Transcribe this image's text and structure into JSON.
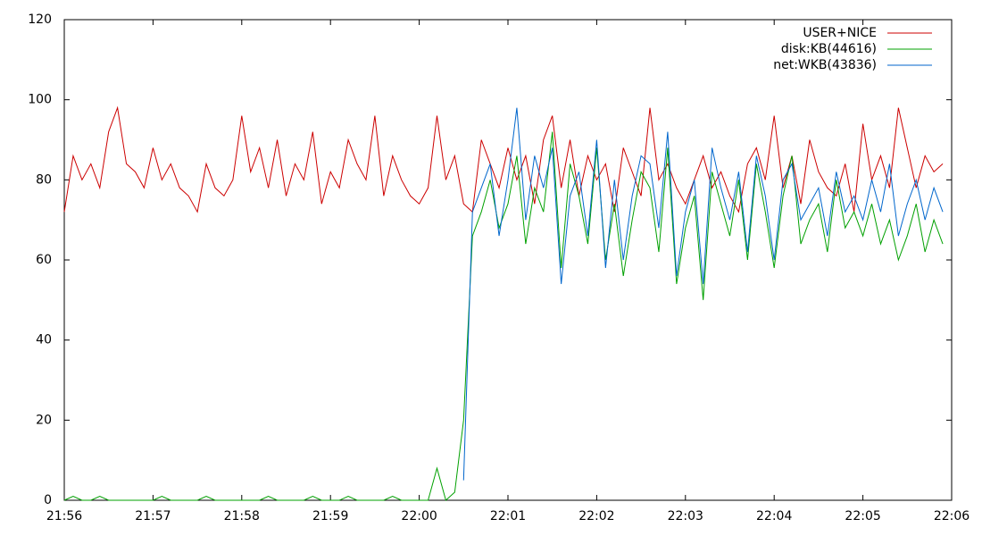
{
  "chart_data": {
    "type": "line",
    "x": [
      1316.0,
      1316.1,
      1316.2,
      1316.3,
      1316.4,
      1316.5,
      1316.6,
      1316.7,
      1316.8,
      1316.9,
      1317.0,
      1317.1,
      1317.2,
      1317.3,
      1317.4,
      1317.5,
      1317.6,
      1317.7,
      1317.8,
      1317.9,
      1318.0,
      1318.1,
      1318.2,
      1318.3,
      1318.4,
      1318.5,
      1318.6,
      1318.7,
      1318.8,
      1318.9,
      1319.0,
      1319.1,
      1319.2,
      1319.3,
      1319.4,
      1319.5,
      1319.6,
      1319.7,
      1319.8,
      1319.9,
      1320.0,
      1320.1,
      1320.2,
      1320.3,
      1320.4,
      1320.5,
      1320.6,
      1320.7,
      1320.8,
      1320.9,
      1321.0,
      1321.1,
      1321.2,
      1321.3,
      1321.4,
      1321.5,
      1321.6,
      1321.7,
      1321.8,
      1321.9,
      1322.0,
      1322.1,
      1322.2,
      1322.3,
      1322.4,
      1322.5,
      1322.6,
      1322.7,
      1322.8,
      1322.9,
      1323.0,
      1323.1,
      1323.2,
      1323.3,
      1323.4,
      1323.5,
      1323.6,
      1323.7,
      1323.8,
      1323.9,
      1324.0,
      1324.1,
      1324.2,
      1324.3,
      1324.4,
      1324.5,
      1324.6,
      1324.7,
      1324.8,
      1324.9,
      1325.0,
      1325.1,
      1325.2,
      1325.3,
      1325.4,
      1325.5,
      1325.6,
      1325.7,
      1325.8,
      1325.9
    ],
    "series": [
      {
        "name": "USER+NICE",
        "color": "#cc0000",
        "values": [
          72,
          86,
          80,
          84,
          78,
          92,
          98,
          84,
          82,
          78,
          88,
          80,
          84,
          78,
          76,
          72,
          84,
          78,
          76,
          80,
          96,
          82,
          88,
          78,
          90,
          76,
          84,
          80,
          92,
          74,
          82,
          78,
          90,
          84,
          80,
          96,
          76,
          86,
          80,
          76,
          74,
          78,
          96,
          80,
          86,
          74,
          72,
          90,
          84,
          78,
          88,
          80,
          86,
          74,
          90,
          96,
          78,
          90,
          76,
          86,
          80,
          84,
          72,
          88,
          82,
          76,
          98,
          80,
          84,
          78,
          74,
          80,
          86,
          78,
          82,
          76,
          72,
          84,
          88,
          80,
          96,
          78,
          86,
          74,
          90,
          82,
          78,
          76,
          84,
          72,
          94,
          80,
          86,
          78,
          98,
          88,
          78,
          86,
          82,
          84
        ]
      },
      {
        "name": "disk:KB(44616)",
        "color": "#00a000",
        "values": [
          0,
          1,
          0,
          0,
          1,
          0,
          0,
          0,
          0,
          0,
          0,
          1,
          0,
          0,
          0,
          0,
          1,
          0,
          0,
          0,
          0,
          0,
          0,
          1,
          0,
          0,
          0,
          0,
          1,
          0,
          0,
          0,
          1,
          0,
          0,
          0,
          0,
          1,
          0,
          0,
          0,
          0,
          8,
          0,
          2,
          20,
          66,
          72,
          80,
          68,
          74,
          86,
          64,
          78,
          72,
          92,
          58,
          84,
          76,
          64,
          88,
          60,
          74,
          56,
          70,
          82,
          78,
          62,
          88,
          54,
          68,
          76,
          50,
          82,
          74,
          66,
          80,
          60,
          84,
          72,
          58,
          76,
          86,
          64,
          70,
          74,
          62,
          80,
          68,
          72,
          66,
          74,
          64,
          70,
          60,
          66,
          74,
          62,
          70,
          64
        ]
      },
      {
        "name": "net:WKB(43836)",
        "color": "#0066cc",
        "values": [
          null,
          null,
          null,
          null,
          null,
          null,
          null,
          null,
          null,
          null,
          null,
          null,
          null,
          null,
          null,
          null,
          null,
          null,
          null,
          null,
          null,
          null,
          null,
          null,
          null,
          null,
          null,
          null,
          null,
          null,
          null,
          null,
          null,
          null,
          null,
          null,
          null,
          null,
          null,
          null,
          null,
          null,
          null,
          null,
          null,
          5,
          72,
          78,
          84,
          66,
          80,
          98,
          70,
          86,
          78,
          88,
          54,
          76,
          82,
          66,
          90,
          58,
          80,
          60,
          76,
          86,
          84,
          68,
          92,
          56,
          72,
          80,
          54,
          88,
          78,
          70,
          82,
          62,
          86,
          76,
          60,
          80,
          84,
          70,
          74,
          78,
          66,
          82,
          72,
          76,
          70,
          80,
          72,
          84,
          66,
          74,
          80,
          70,
          78,
          72
        ]
      }
    ],
    "xlim": [
      1316,
      1326
    ],
    "xticks": [
      {
        "value": 1316,
        "label": "21:56"
      },
      {
        "value": 1317,
        "label": "21:57"
      },
      {
        "value": 1318,
        "label": "21:58"
      },
      {
        "value": 1319,
        "label": "21:59"
      },
      {
        "value": 1320,
        "label": "22:00"
      },
      {
        "value": 1321,
        "label": "22:01"
      },
      {
        "value": 1322,
        "label": "22:02"
      },
      {
        "value": 1323,
        "label": "22:03"
      },
      {
        "value": 1324,
        "label": "22:04"
      },
      {
        "value": 1325,
        "label": "22:05"
      },
      {
        "value": 1326,
        "label": "22:06"
      }
    ],
    "ylim": [
      0,
      120
    ],
    "yticks": [
      0,
      20,
      40,
      60,
      80,
      100,
      120
    ],
    "grid": false,
    "legend": "top-right"
  }
}
